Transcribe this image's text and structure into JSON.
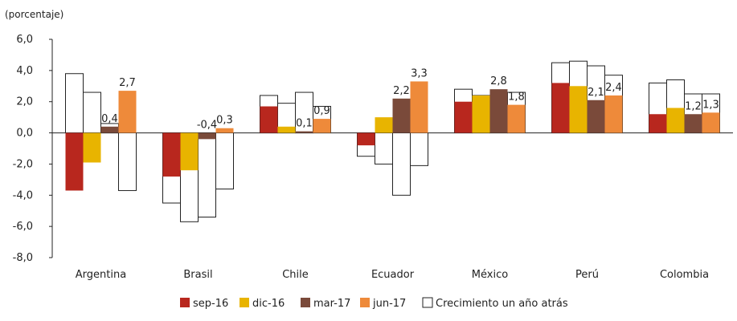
{
  "chart_data": {
    "type": "bar",
    "ylabel": "(porcentaje)",
    "ylim": [
      -8,
      6
    ],
    "yticks": [
      6,
      4,
      2,
      0,
      -2,
      -4,
      -6,
      -8
    ],
    "ytick_labels": [
      "6,0",
      "4,0",
      "2,0",
      "0,0",
      "-2,0",
      "-4,0",
      "-6,0",
      "-8,0"
    ],
    "categories": [
      "Argentina",
      "Brasil",
      "Chile",
      "Ecuador",
      "México",
      "Perú",
      "Colombia"
    ],
    "series": [
      {
        "name": "sep-16",
        "color": "#b8271e",
        "values": [
          -3.7,
          -2.8,
          1.7,
          -0.8,
          2.0,
          3.2,
          1.2
        ]
      },
      {
        "name": "dic-16",
        "color": "#e8b400",
        "values": [
          -1.9,
          -2.4,
          0.4,
          1.0,
          2.4,
          3.0,
          1.6
        ]
      },
      {
        "name": "mar-17",
        "color": "#7a4a3a",
        "values": [
          0.4,
          -0.4,
          0.1,
          2.2,
          2.8,
          2.1,
          1.2
        ]
      },
      {
        "name": "jun-17",
        "color": "#ee8a3a",
        "values": [
          2.7,
          0.3,
          0.9,
          3.3,
          1.8,
          2.4,
          1.3
        ]
      }
    ],
    "series_one_year_ago": {
      "name": "Crecimiento un año atrás",
      "values": [
        [
          3.8,
          2.6,
          0.6,
          -3.7
        ],
        [
          -4.5,
          -5.7,
          -5.4,
          -3.6
        ],
        [
          2.4,
          1.9,
          2.6,
          1.7
        ],
        [
          -1.5,
          -2.0,
          -4.0,
          -2.1
        ],
        [
          2.8,
          2.4,
          2.3,
          2.6
        ],
        [
          4.5,
          4.6,
          4.3,
          3.7
        ],
        [
          3.2,
          3.4,
          2.5,
          2.5
        ]
      ]
    },
    "data_labels": [
      [
        null,
        null,
        "0,4",
        "2,7"
      ],
      [
        null,
        null,
        "-0,4",
        "0,3"
      ],
      [
        null,
        null,
        "0,1",
        "0,9"
      ],
      [
        null,
        null,
        "2,2",
        "3,3"
      ],
      [
        null,
        null,
        "2,8",
        "1,8"
      ],
      [
        null,
        null,
        "2,1",
        "2,4"
      ],
      [
        null,
        null,
        "1,2",
        "1,3"
      ]
    ],
    "legend": {
      "placement": "bottom",
      "entries": [
        "sep-16",
        "dic-16",
        "mar-17",
        "jun-17",
        "Crecimiento un año atrás"
      ]
    },
    "grid": false
  }
}
